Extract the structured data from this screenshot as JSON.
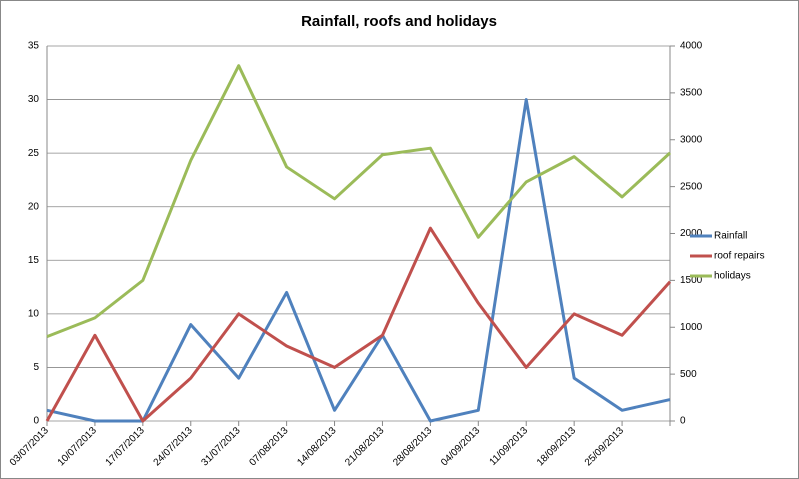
{
  "chart_data": {
    "type": "line",
    "title": "Rainfall, roofs and holidays",
    "categories": [
      "03/07/2013",
      "10/07/2013",
      "17/07/2013",
      "24/07/2013",
      "31/07/2013",
      "07/08/2013",
      "14/08/2013",
      "21/08/2013",
      "28/08/2013",
      "04/09/2013",
      "11/09/2013",
      "18/09/2013",
      "25/09/2013",
      null
    ],
    "series": [
      {
        "name": "Rainfall",
        "color": "#4f81bd",
        "values": [
          1,
          0,
          0,
          9,
          4,
          12,
          1,
          8,
          0,
          1,
          30,
          4,
          1,
          2
        ]
      },
      {
        "name": "roof repairs",
        "color": "#c0504d",
        "values": [
          0,
          8,
          0,
          4,
          10,
          7,
          5,
          8,
          18,
          11,
          5,
          10,
          8,
          13
        ]
      },
      {
        "name": "holidays",
        "color": "#9bbb59",
        "axis": "y2",
        "values": [
          900,
          1100,
          1500,
          2780,
          3790,
          2710,
          2370,
          2840,
          2910,
          1960,
          2550,
          2820,
          2390,
          2860
        ]
      }
    ],
    "ylim": [
      0,
      35
    ],
    "yticks": [
      0,
      5,
      10,
      15,
      20,
      25,
      30,
      35
    ],
    "y2lim": [
      0,
      4000
    ],
    "y2ticks": [
      0,
      500,
      1000,
      1500,
      2000,
      2500,
      3000,
      3500,
      4000
    ],
    "grid": true,
    "legend": "right"
  }
}
